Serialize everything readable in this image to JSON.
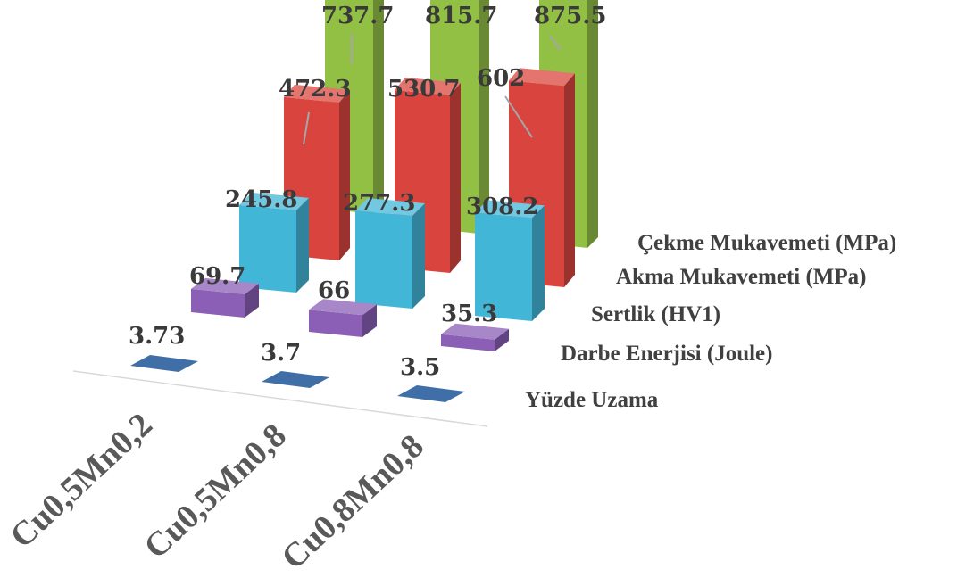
{
  "chart_data": {
    "type": "bar",
    "style": "3d-column",
    "categories": [
      "Cu0,5Mn0,2",
      "Cu0,5Mn0,8",
      "Cu0,8Mn0,8"
    ],
    "series": [
      {
        "name": "Yüzde Uzama",
        "values": [
          3.73,
          3.7,
          3.5
        ],
        "value_labels": [
          "3.73",
          "3.7",
          "3.5"
        ],
        "color": "#3f6fa6"
      },
      {
        "name": "Darbe Enerjisi (Joule)",
        "values": [
          69.7,
          66,
          35.3
        ],
        "value_labels": [
          "69.7",
          "66",
          "35.3"
        ],
        "color": "#8a5fb5"
      },
      {
        "name": "Sertlik (HV1)",
        "values": [
          245.8,
          277.3,
          308.2
        ],
        "value_labels": [
          "245.8",
          "277.3",
          "308.2"
        ],
        "color": "#42b6d6"
      },
      {
        "name": "Akma Mukavemeti (MPa)",
        "values": [
          472.3,
          530.7,
          602
        ],
        "value_labels": [
          "472.3",
          "530.7",
          "602"
        ],
        "color": "#d9453e"
      },
      {
        "name": "Çekme Mukavemeti (MPa)",
        "values": [
          737.7,
          815.7,
          875.5
        ],
        "value_labels": [
          "737.7",
          "815.7",
          "875.5"
        ],
        "color": "#92c045"
      }
    ],
    "title": "",
    "xlabel": "",
    "ylabel": "",
    "legend": "none",
    "grid": false
  }
}
